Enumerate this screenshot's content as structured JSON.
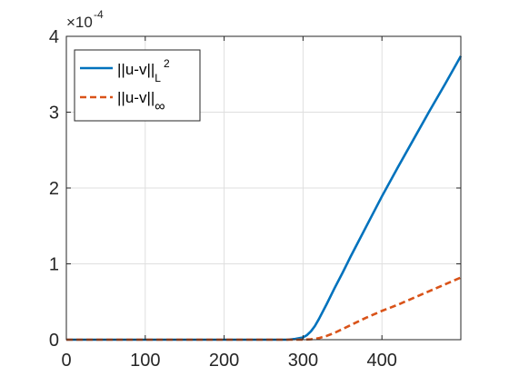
{
  "chart_data": {
    "type": "line",
    "title": "",
    "xlabel": "",
    "ylabel": "",
    "xlim": [
      0,
      500
    ],
    "ylim": [
      0,
      4
    ],
    "y_scale_note": "×10⁻⁴",
    "y_exponent": "-4",
    "x_ticks": [
      0,
      100,
      200,
      300,
      400
    ],
    "y_ticks": [
      0,
      1,
      2,
      3,
      4
    ],
    "grid": true,
    "legend_position": "top-left",
    "series": [
      {
        "name": "||u-v||_{L^2}",
        "legend_main": "||u-v||",
        "legend_sub": "L",
        "legend_sup": "2",
        "color": "#0072BD",
        "style": "solid",
        "x": [
          0,
          100,
          200,
          280,
          290,
          300,
          305,
          310,
          315,
          320,
          330,
          340,
          350,
          360,
          380,
          400,
          420,
          440,
          460,
          480,
          500
        ],
        "y": [
          0,
          0,
          0,
          0,
          0.01,
          0.03,
          0.06,
          0.11,
          0.18,
          0.27,
          0.47,
          0.68,
          0.88,
          1.09,
          1.49,
          1.89,
          2.27,
          2.64,
          3.01,
          3.37,
          3.74
        ]
      },
      {
        "name": "||u-v||_∞",
        "legend_main": "||u-v||",
        "legend_sub": "∞",
        "legend_sup": "",
        "color": "#D95319",
        "style": "dashed",
        "x": [
          0,
          100,
          200,
          300,
          310,
          320,
          330,
          340,
          350,
          360,
          380,
          400,
          420,
          440,
          460,
          480,
          500
        ],
        "y": [
          0,
          0,
          0,
          0,
          0.005,
          0.02,
          0.05,
          0.09,
          0.14,
          0.19,
          0.29,
          0.38,
          0.46,
          0.55,
          0.64,
          0.73,
          0.82
        ]
      }
    ]
  }
}
